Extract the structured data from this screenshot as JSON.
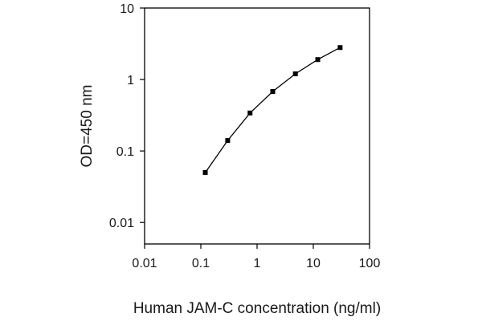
{
  "chart_data": {
    "type": "line",
    "title": "",
    "xlabel": "Human JAM-C concentration (ng/ml)",
    "ylabel": "OD=450 nm",
    "x_scale": "log",
    "y_scale": "log",
    "xlim": [
      0.01,
      100
    ],
    "ylim": [
      0.005,
      10
    ],
    "x_ticks": [
      {
        "value": 0.01,
        "label": "0.01"
      },
      {
        "value": 0.1,
        "label": "0.1"
      },
      {
        "value": 1,
        "label": "1"
      },
      {
        "value": 10,
        "label": "10"
      },
      {
        "value": 100,
        "label": "100"
      }
    ],
    "y_ticks": [
      {
        "value": 0.01,
        "label": "0.01"
      },
      {
        "value": 0.1,
        "label": "0.1"
      },
      {
        "value": 1,
        "label": "1"
      },
      {
        "value": 10,
        "label": "10"
      }
    ],
    "grid": false,
    "legend": "none",
    "series": [
      {
        "color": "#000000",
        "marker": "square",
        "points": [
          {
            "x": 0.12,
            "y": 0.05
          },
          {
            "x": 0.3,
            "y": 0.14
          },
          {
            "x": 0.75,
            "y": 0.34
          },
          {
            "x": 1.9,
            "y": 0.68
          },
          {
            "x": 4.8,
            "y": 1.2
          },
          {
            "x": 12,
            "y": 1.9
          },
          {
            "x": 30,
            "y": 2.8
          }
        ]
      }
    ]
  }
}
